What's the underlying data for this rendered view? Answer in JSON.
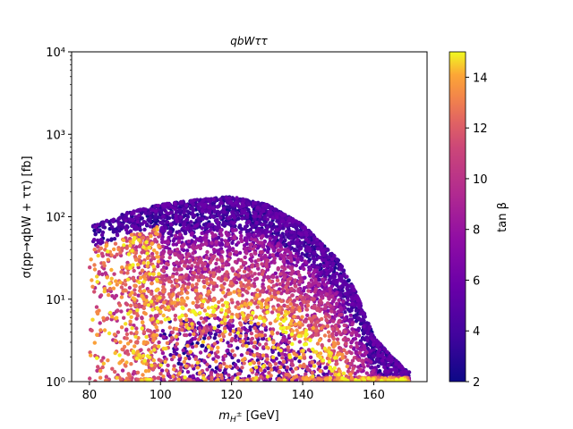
{
  "chart_data": {
    "type": "scatter",
    "title": "qbWττ",
    "xlabel": "m_{H^±} [GeV]",
    "ylabel": "σ(pp→qbW + ττ) [fb]",
    "xlim": [
      75,
      175
    ],
    "ylim": [
      1,
      10000
    ],
    "yscale": "log",
    "x_ticks": [
      80,
      100,
      120,
      140,
      160
    ],
    "x_tick_labels": [
      "80",
      "100",
      "120",
      "140",
      "160"
    ],
    "y_ticks": [
      1,
      10,
      100,
      1000,
      10000
    ],
    "y_tick_labels": [
      "10⁰",
      "10¹",
      "10²",
      "10³",
      "10⁴"
    ],
    "colorbar": {
      "label": "tan β",
      "range": [
        2,
        15
      ],
      "ticks": [
        2,
        4,
        6,
        8,
        10,
        12,
        14
      ],
      "tick_labels": [
        "2",
        "4",
        "6",
        "8",
        "10",
        "12",
        "14"
      ],
      "colormap": "plasma"
    },
    "point_cloud": {
      "x_range": [
        80,
        170
      ],
      "upper_envelope": [
        [
          82,
          80
        ],
        [
          90,
          110
        ],
        [
          100,
          140
        ],
        [
          110,
          160
        ],
        [
          120,
          175
        ],
        [
          130,
          140
        ],
        [
          140,
          80
        ],
        [
          150,
          30
        ],
        [
          155,
          12
        ],
        [
          160,
          3.5
        ],
        [
          165,
          2
        ],
        [
          170,
          1.3
        ]
      ],
      "trend": "low tan β at upper envelope, high tan β near lower core, mixed scatter at low cross section"
    },
    "legend": "none"
  }
}
